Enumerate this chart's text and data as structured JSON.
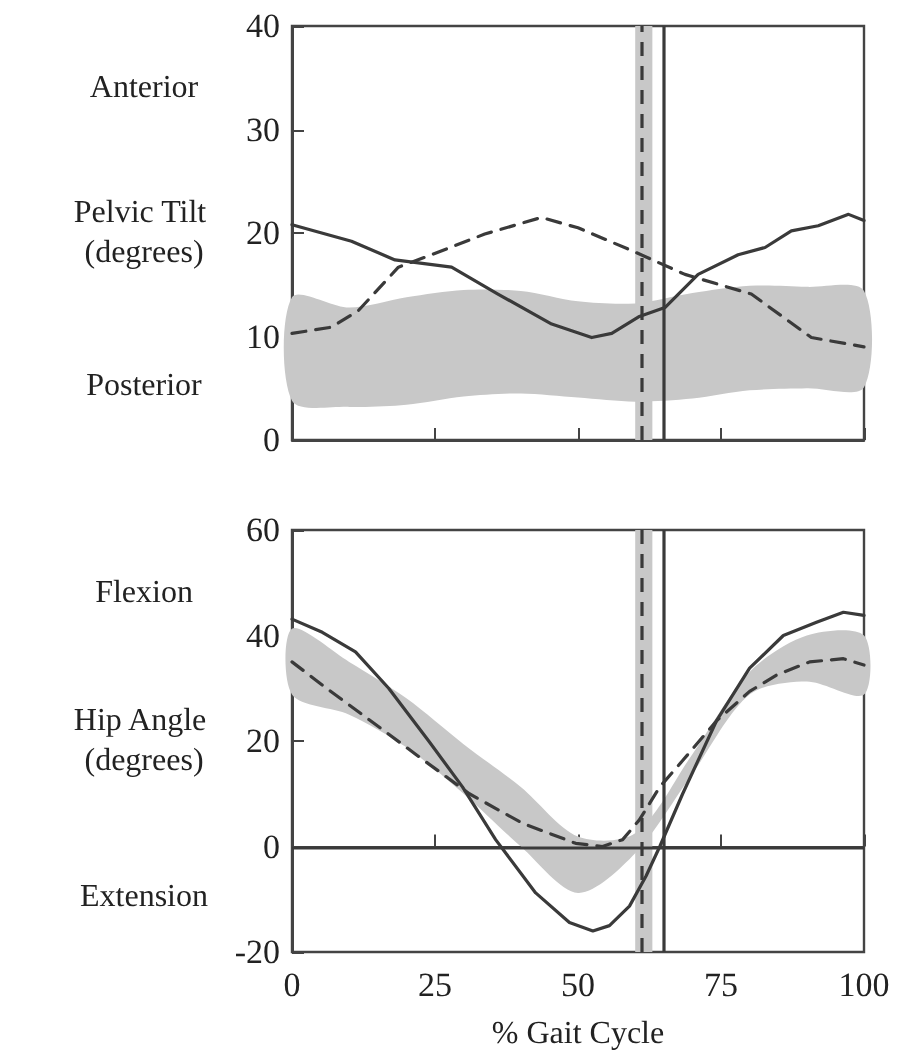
{
  "chart_data": [
    {
      "type": "line",
      "ylabel": "Pelvic Tilt (degrees)",
      "annotations": [
        "Anterior",
        "Posterior"
      ],
      "xlim": [
        0,
        100
      ],
      "xticks": [
        0,
        25,
        50,
        75,
        100
      ],
      "ylim": [
        0,
        40
      ],
      "yticks": [
        0,
        10,
        20,
        30,
        40
      ],
      "tick_labels": "y",
      "series": [
        {
          "color": "#c8c8c8",
          "x": [
            0,
            10,
            20,
            30,
            40,
            50,
            60,
            70,
            80,
            90,
            100
          ],
          "values": [
            null,
            null,
            null,
            null,
            null,
            null,
            null,
            null,
            null,
            null,
            null
          ],
          "lower": [
            3.8,
            3.2,
            3.4,
            4.2,
            4.5,
            4.1,
            3.7,
            4.0,
            4.8,
            5.0,
            5.1
          ],
          "upper": [
            13.8,
            12.8,
            13.8,
            14.5,
            14.4,
            13.4,
            13.2,
            14.2,
            14.9,
            14.8,
            14.4
          ]
        },
        {
          "color": "#3a3a3a",
          "line_style": "solid",
          "x": [
            0,
            10.4,
            18,
            27.9,
            36,
            45.4,
            52.4,
            55.9,
            60.6,
            65.2,
            71,
            78,
            82.7,
            87.3,
            92,
            97.3,
            100
          ],
          "values": [
            20.8,
            19.2,
            17.4,
            16.7,
            14.1,
            11.2,
            9.9,
            10.3,
            11.9,
            12.8,
            16,
            17.9,
            18.6,
            20.2,
            20.7,
            21.8,
            21.2
          ]
        },
        {
          "color": "#3a3a3a",
          "line_style": "dashed",
          "x": [
            0,
            6.9,
            11.6,
            18.6,
            24.4,
            33.7,
            43.6,
            50,
            59.4,
            68.7,
            80.3,
            90.8,
            100
          ],
          "values": [
            10.3,
            10.9,
            12.5,
            16.7,
            17.9,
            19.9,
            21.5,
            20.5,
            18.3,
            16,
            14.1,
            9.9,
            9.0
          ]
        }
      ],
      "ref_lines": [
        {
          "axis": "x",
          "value": 65,
          "color": "#3a3a3a",
          "line_style": "solid"
        },
        {
          "axis": "x",
          "value": 61,
          "color": "#3a3a3a",
          "line_style": "dashed"
        }
      ],
      "bands": [
        {
          "axis": "x",
          "from": 60,
          "to": 63,
          "color": "#c8c8c8"
        }
      ]
    },
    {
      "type": "line",
      "ylabel": "Hip Angle (degrees)",
      "xlabel": "% Gait Cycle",
      "annotations": [
        "Flexion",
        "Extension"
      ],
      "xlim": [
        0,
        100
      ],
      "xticks": [
        0,
        25,
        50,
        75,
        100
      ],
      "ylim": [
        -20,
        60
      ],
      "yticks": [
        -20,
        0,
        20,
        40,
        60
      ],
      "series": [
        {
          "color": "#c8c8c8",
          "x": [
            0,
            10,
            20,
            30,
            40,
            50,
            60,
            70,
            80,
            90,
            100
          ],
          "values": [
            null,
            null,
            null,
            null,
            null,
            null,
            null,
            null,
            null,
            null,
            null
          ],
          "lower": [
            28.8,
            25,
            18.8,
            10,
            0,
            -8.8,
            -1.3,
            13.8,
            28.8,
            31.3,
            28.8
          ],
          "upper": [
            41.3,
            35,
            28.1,
            19.4,
            11.3,
            1.9,
            2.5,
            17.5,
            33.1,
            40,
            40
          ]
        },
        {
          "color": "#3a3a3a",
          "line_style": "solid",
          "x": [
            0,
            5.3,
            11.1,
            16.9,
            23.9,
            29.8,
            35.6,
            42.6,
            48.5,
            52.6,
            55.5,
            59,
            61.9,
            64.3,
            68.3,
            74.2,
            80,
            85.9,
            91.7,
            96.4,
            100
          ],
          "values": [
            43.1,
            40.6,
            36.9,
            30,
            20,
            11.3,
            1.3,
            -8.8,
            -14.4,
            -16,
            -15,
            -11.3,
            -5.6,
            0,
            10,
            23.8,
            33.8,
            40,
            42.5,
            44.4,
            43.8
          ]
        },
        {
          "color": "#3a3a3a",
          "line_style": "dashed",
          "x": [
            0,
            5.3,
            12.3,
            21.6,
            31,
            40.3,
            49.6,
            54.3,
            57.8,
            60.7,
            64.3,
            68.3,
            74.2,
            80,
            84.7,
            90.5,
            96.4,
            100
          ],
          "values": [
            35,
            30.6,
            25,
            17.5,
            10,
            4.4,
            0.6,
            0,
            1.3,
            5,
            11.3,
            16.3,
            23.8,
            29.4,
            32.5,
            35,
            35.6,
            34.4
          ]
        }
      ],
      "ref_lines": [
        {
          "axis": "y",
          "value": 0,
          "color": "#3a3a3a",
          "line_style": "solid"
        },
        {
          "axis": "x",
          "value": 65,
          "color": "#3a3a3a",
          "line_style": "solid"
        },
        {
          "axis": "x",
          "value": 61,
          "color": "#3a3a3a",
          "line_style": "dashed"
        }
      ],
      "bands": [
        {
          "axis": "x",
          "from": 60,
          "to": 63,
          "color": "#c8c8c8"
        }
      ]
    }
  ]
}
